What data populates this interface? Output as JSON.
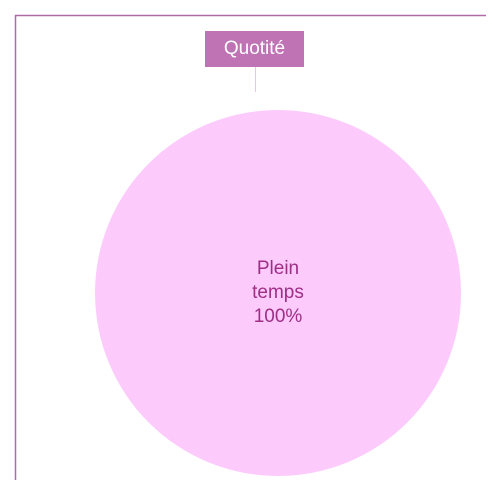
{
  "chart_data": {
    "type": "pie",
    "title": "Quotité",
    "categories": [
      "Plein temps"
    ],
    "values": [
      100
    ],
    "value_labels": [
      "100%"
    ],
    "colors": [
      "#fccbfc"
    ]
  }
}
